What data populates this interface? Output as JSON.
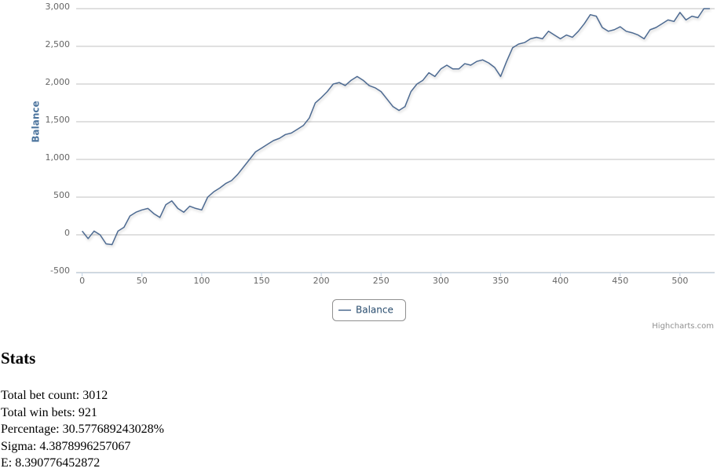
{
  "chart_data": {
    "type": "line",
    "y_axis_title": "Balance",
    "credits": "Highcharts.com",
    "x": [
      0,
      5,
      10,
      15,
      20,
      25,
      30,
      35,
      40,
      45,
      50,
      55,
      60,
      65,
      70,
      75,
      80,
      85,
      90,
      95,
      100,
      105,
      110,
      115,
      120,
      125,
      130,
      135,
      140,
      145,
      150,
      155,
      160,
      165,
      170,
      175,
      180,
      185,
      190,
      195,
      200,
      205,
      210,
      215,
      220,
      225,
      230,
      235,
      240,
      245,
      250,
      255,
      260,
      265,
      270,
      275,
      280,
      285,
      290,
      295,
      300,
      305,
      310,
      315,
      320,
      325,
      330,
      335,
      340,
      345,
      350,
      355,
      360,
      365,
      370,
      375,
      380,
      385,
      390,
      395,
      400,
      405,
      410,
      415,
      420,
      425,
      430,
      435,
      440,
      445,
      450,
      455,
      460,
      465,
      470,
      475,
      480,
      485,
      490,
      495,
      500,
      505,
      510,
      515,
      520,
      525
    ],
    "series": [
      {
        "name": "Balance",
        "color": "#4d6a91",
        "values": [
          50,
          -50,
          50,
          0,
          -120,
          -130,
          50,
          100,
          250,
          300,
          330,
          350,
          280,
          230,
          400,
          450,
          350,
          300,
          380,
          350,
          330,
          500,
          570,
          620,
          680,
          720,
          800,
          900,
          1000,
          1100,
          1150,
          1200,
          1250,
          1280,
          1330,
          1350,
          1400,
          1450,
          1550,
          1750,
          1820,
          1900,
          2000,
          2020,
          1980,
          2050,
          2100,
          2050,
          1980,
          1950,
          1900,
          1800,
          1700,
          1650,
          1700,
          1900,
          2000,
          2050,
          2150,
          2100,
          2200,
          2250,
          2200,
          2200,
          2270,
          2250,
          2300,
          2320,
          2280,
          2220,
          2100,
          2300,
          2480,
          2530,
          2550,
          2600,
          2620,
          2600,
          2700,
          2650,
          2600,
          2650,
          2620,
          2700,
          2800,
          2920,
          2900,
          2750,
          2700,
          2720,
          2760,
          2700,
          2680,
          2650,
          2600,
          2720,
          2750,
          2800,
          2850,
          2830,
          2950,
          2850,
          2900,
          2880,
          3000,
          3000
        ]
      }
    ],
    "xlim": [
      -5,
      529
    ],
    "xticks": [
      0,
      50,
      100,
      150,
      200,
      250,
      300,
      350,
      400,
      450,
      500
    ],
    "ylim": [
      -500,
      3000
    ],
    "yticks": [
      -500,
      0,
      500,
      {
        "value": 1000,
        "label": "1,000"
      },
      {
        "value": 1500,
        "label": "1,500"
      },
      {
        "value": 2000,
        "label": "2,000"
      },
      {
        "value": 2500,
        "label": "2,500"
      },
      {
        "value": 3000,
        "label": "3,000"
      }
    ],
    "grid": true,
    "legend": "bottom"
  },
  "stats": {
    "title": "Stats",
    "lines": [
      "Total bet count: 3012",
      "Total win bets: 921",
      "Percentage: 30.577689243028%",
      "Sigma: 4.3878996257067",
      "E: 8.390776452872"
    ]
  }
}
